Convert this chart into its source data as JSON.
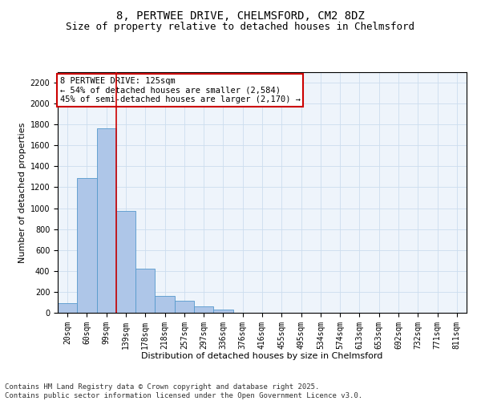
{
  "title_line1": "8, PERTWEE DRIVE, CHELMSFORD, CM2 8DZ",
  "title_line2": "Size of property relative to detached houses in Chelmsford",
  "xlabel": "Distribution of detached houses by size in Chelmsford",
  "ylabel": "Number of detached properties",
  "categories": [
    "20sqm",
    "60sqm",
    "99sqm",
    "139sqm",
    "178sqm",
    "218sqm",
    "257sqm",
    "297sqm",
    "336sqm",
    "376sqm",
    "416sqm",
    "455sqm",
    "495sqm",
    "534sqm",
    "574sqm",
    "613sqm",
    "653sqm",
    "692sqm",
    "732sqm",
    "771sqm",
    "811sqm"
  ],
  "values": [
    90,
    1290,
    1760,
    970,
    420,
    160,
    115,
    60,
    30,
    0,
    0,
    0,
    0,
    0,
    0,
    0,
    0,
    0,
    0,
    0,
    0
  ],
  "bar_color": "#aec6e8",
  "bar_edge_color": "#5599cc",
  "vline_position": 2.5,
  "vline_color": "#cc0000",
  "annotation_box_text": "8 PERTWEE DRIVE: 125sqm\n← 54% of detached houses are smaller (2,584)\n45% of semi-detached houses are larger (2,170) →",
  "box_edge_color": "#cc0000",
  "ylim": [
    0,
    2300
  ],
  "yticks": [
    0,
    200,
    400,
    600,
    800,
    1000,
    1200,
    1400,
    1600,
    1800,
    2000,
    2200
  ],
  "grid_color": "#ccddee",
  "background_color": "#eef4fb",
  "footer_line1": "Contains HM Land Registry data © Crown copyright and database right 2025.",
  "footer_line2": "Contains public sector information licensed under the Open Government Licence v3.0.",
  "title_fontsize": 10,
  "subtitle_fontsize": 9,
  "axis_label_fontsize": 8,
  "tick_fontsize": 7,
  "annotation_fontsize": 7.5,
  "footer_fontsize": 6.5
}
